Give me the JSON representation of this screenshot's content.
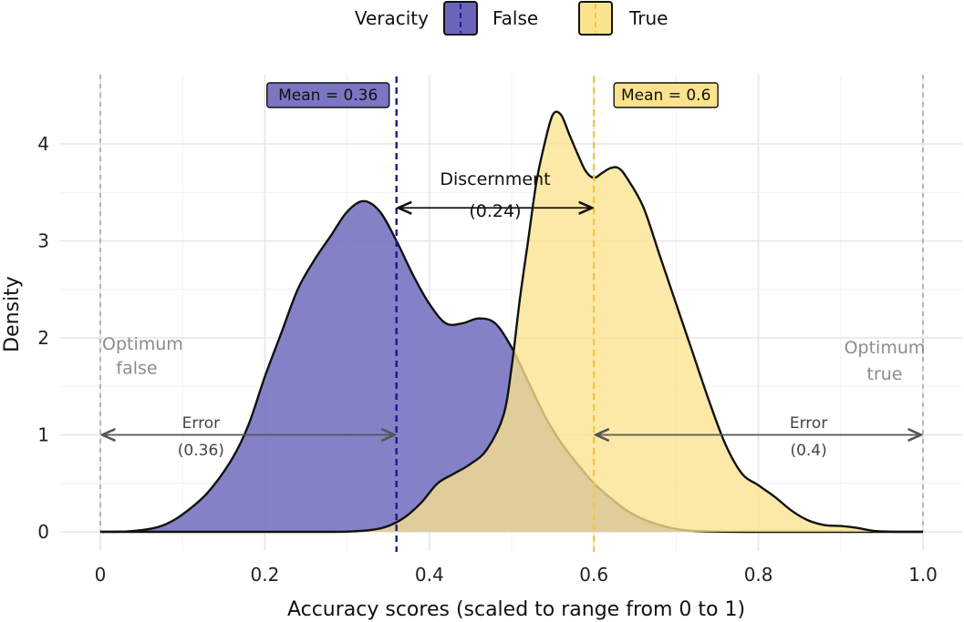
{
  "chart_data": {
    "type": "area",
    "title": "",
    "xlabel": "Accuracy scores (scaled to range from 0 to 1)",
    "ylabel": "Density",
    "xlim": [
      -0.05,
      1.0
    ],
    "ylim": [
      -0.2,
      4.5
    ],
    "x_ticks": [
      0,
      0.2,
      0.4,
      0.6,
      0.8,
      1.0
    ],
    "x_tick_labels": [
      "0",
      "0.2",
      "0.4",
      "0.6",
      "0.8",
      "1.0"
    ],
    "y_ticks": [
      0,
      1,
      2,
      3,
      4
    ],
    "y_tick_labels": [
      "0",
      "1",
      "2",
      "3",
      "4"
    ],
    "grid": true,
    "legend": {
      "title": "Veracity",
      "position": "top",
      "entries": [
        {
          "label": "False",
          "color": "#6a65b8"
        },
        {
          "label": "True",
          "color": "#fbe38e"
        }
      ]
    },
    "series": [
      {
        "name": "False",
        "fill": "#7a76c2",
        "mean": 0.36,
        "mean_label": "Mean = 0.36",
        "mean_line_color": "#1c1a8c",
        "points": [
          [
            0.0,
            0.0
          ],
          [
            0.03,
            0.003
          ],
          [
            0.06,
            0.03
          ],
          [
            0.08,
            0.08
          ],
          [
            0.1,
            0.18
          ],
          [
            0.13,
            0.4
          ],
          [
            0.16,
            0.75
          ],
          [
            0.18,
            1.1
          ],
          [
            0.2,
            1.6
          ],
          [
            0.22,
            2.05
          ],
          [
            0.24,
            2.5
          ],
          [
            0.26,
            2.8
          ],
          [
            0.28,
            3.05
          ],
          [
            0.3,
            3.3
          ],
          [
            0.32,
            3.41
          ],
          [
            0.34,
            3.3
          ],
          [
            0.36,
            3.0
          ],
          [
            0.38,
            2.65
          ],
          [
            0.4,
            2.35
          ],
          [
            0.42,
            2.15
          ],
          [
            0.44,
            2.15
          ],
          [
            0.46,
            2.2
          ],
          [
            0.48,
            2.15
          ],
          [
            0.5,
            1.9
          ],
          [
            0.52,
            1.55
          ],
          [
            0.54,
            1.2
          ],
          [
            0.56,
            0.92
          ],
          [
            0.58,
            0.7
          ],
          [
            0.6,
            0.5
          ],
          [
            0.62,
            0.35
          ],
          [
            0.64,
            0.22
          ],
          [
            0.66,
            0.13
          ],
          [
            0.68,
            0.07
          ],
          [
            0.7,
            0.03
          ],
          [
            0.72,
            0.01
          ],
          [
            0.75,
            0.003
          ],
          [
            0.8,
            0.0
          ],
          [
            1.0,
            0.0
          ]
        ]
      },
      {
        "name": "True",
        "fill": "#fbe38e",
        "mean": 0.6,
        "mean_label": "Mean = 0.6",
        "mean_line_color": "#f5c83a",
        "points": [
          [
            0.0,
            0.0
          ],
          [
            0.26,
            0.0
          ],
          [
            0.3,
            0.002
          ],
          [
            0.33,
            0.02
          ],
          [
            0.35,
            0.06
          ],
          [
            0.37,
            0.15
          ],
          [
            0.39,
            0.3
          ],
          [
            0.41,
            0.5
          ],
          [
            0.43,
            0.6
          ],
          [
            0.45,
            0.7
          ],
          [
            0.47,
            0.85
          ],
          [
            0.49,
            1.2
          ],
          [
            0.5,
            1.7
          ],
          [
            0.51,
            2.4
          ],
          [
            0.52,
            3.0
          ],
          [
            0.53,
            3.6
          ],
          [
            0.54,
            4.0
          ],
          [
            0.55,
            4.3
          ],
          [
            0.56,
            4.3
          ],
          [
            0.57,
            4.1
          ],
          [
            0.58,
            3.9
          ],
          [
            0.59,
            3.72
          ],
          [
            0.6,
            3.65
          ],
          [
            0.61,
            3.7
          ],
          [
            0.62,
            3.75
          ],
          [
            0.63,
            3.75
          ],
          [
            0.64,
            3.65
          ],
          [
            0.66,
            3.35
          ],
          [
            0.68,
            2.85
          ],
          [
            0.7,
            2.35
          ],
          [
            0.72,
            1.85
          ],
          [
            0.74,
            1.35
          ],
          [
            0.76,
            0.9
          ],
          [
            0.78,
            0.6
          ],
          [
            0.8,
            0.48
          ],
          [
            0.82,
            0.36
          ],
          [
            0.84,
            0.22
          ],
          [
            0.86,
            0.12
          ],
          [
            0.88,
            0.07
          ],
          [
            0.9,
            0.06
          ],
          [
            0.92,
            0.04
          ],
          [
            0.94,
            0.01
          ],
          [
            0.96,
            0.002
          ],
          [
            1.0,
            0.0
          ]
        ]
      }
    ],
    "optimum_lines": [
      {
        "x": 0,
        "label_line1": "Optimum",
        "label_line2": "false"
      },
      {
        "x": 1.0,
        "label_line1": "Optimum",
        "label_line2": "true"
      }
    ],
    "annotations": {
      "discernment": {
        "from": 0.36,
        "to": 0.6,
        "y": 3.5,
        "label": "Discernment",
        "value": "(0.24)"
      },
      "error_false": {
        "from": 0.0,
        "to": 0.36,
        "y": 1.0,
        "label": "Error",
        "value": "(0.36)"
      },
      "error_true": {
        "from": 0.6,
        "to": 1.0,
        "y": 1.0,
        "label": "Error",
        "value": "(0.4)"
      }
    }
  }
}
